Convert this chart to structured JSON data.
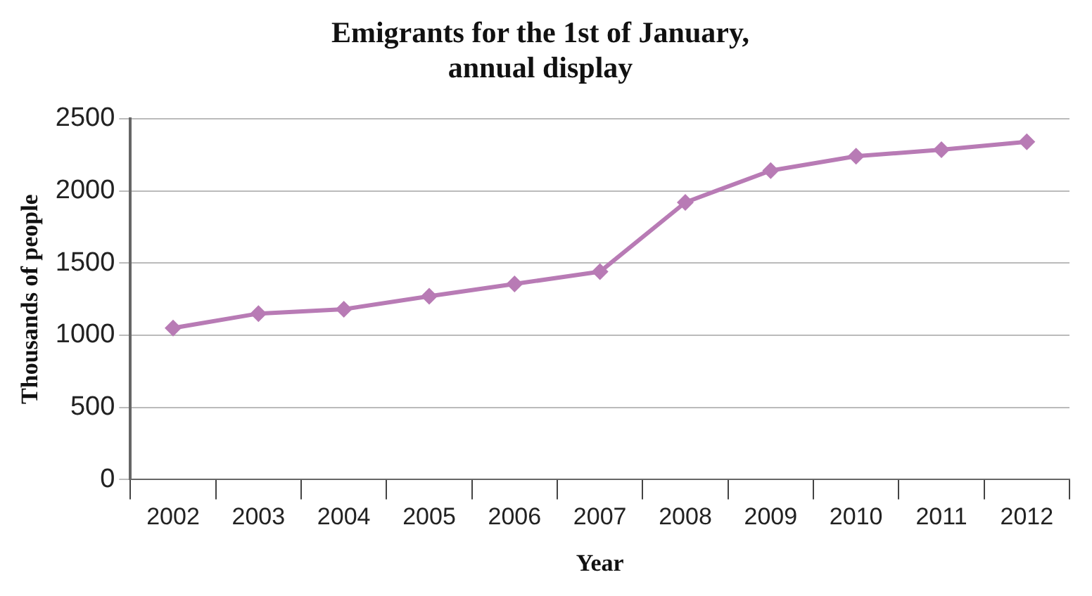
{
  "chart_data": {
    "type": "line",
    "title": "Emigrants for the 1st of January,\nannual display",
    "xlabel": "Year",
    "ylabel": "Thousands of people",
    "categories": [
      "2002",
      "2003",
      "2004",
      "2005",
      "2006",
      "2007",
      "2008",
      "2009",
      "2010",
      "2011",
      "2012"
    ],
    "series": [
      {
        "color": "#b87bb5",
        "values": [
          1050,
          1150,
          1180,
          1270,
          1355,
          1440,
          1920,
          2140,
          2240,
          2285,
          2340
        ]
      }
    ],
    "ylim": [
      0,
      2500
    ],
    "yticks": [
      0,
      500,
      1000,
      1500,
      2000,
      2500
    ],
    "grid": "y",
    "marker": "diamond",
    "line_style": "solid",
    "legend": false
  }
}
